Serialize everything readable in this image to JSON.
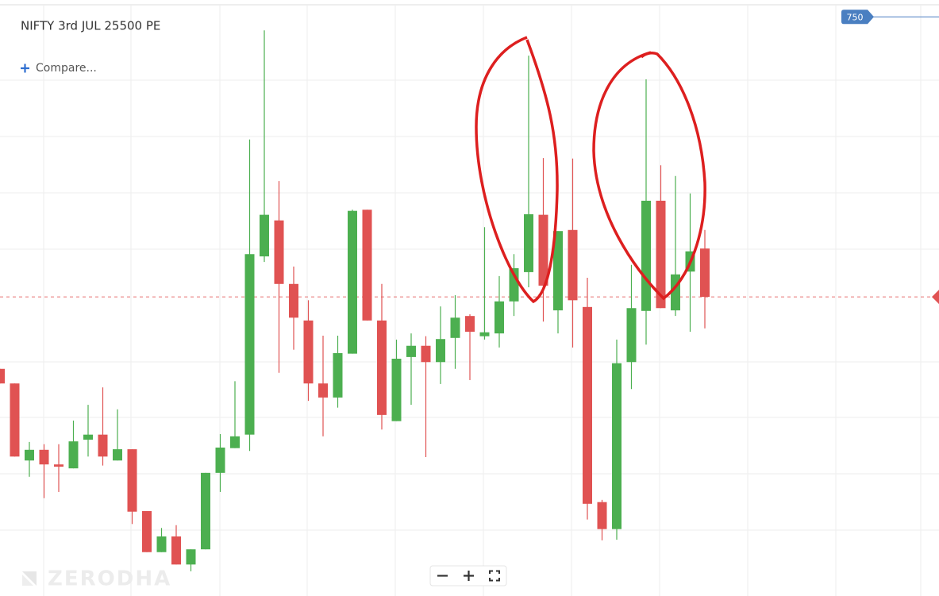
{
  "chart_data": {
    "type": "candlestick",
    "title": "NIFTY 3rd JUL 25500 PE",
    "up_color": "#4caf50",
    "down_color": "#e05252",
    "last_price_color": "#e05252",
    "axis_color": "#4a7fc1",
    "ylim": [
      647,
      753
    ],
    "yticks": [
      750
    ],
    "last_price": 700.2,
    "open": [
      687.4,
      684.8,
      671.1,
      673.0,
      670.4,
      669.7,
      674.8,
      675.7,
      671.1,
      673.1,
      662.1,
      654.8,
      657.6,
      652.6,
      655.3,
      668.9,
      673.3,
      675.7,
      707.4,
      713.8,
      702.5,
      696.0,
      684.8,
      682.3,
      690.1,
      715.7,
      696.0,
      678.1,
      689.5,
      691.5,
      688.6,
      692.9,
      696.8,
      693.2,
      693.7,
      699.4,
      704.6,
      714.8,
      697.8,
      712.1,
      698.4,
      663.7,
      658.9,
      688.6,
      697.7,
      717.3,
      697.8,
      704.7,
      708.8
    ],
    "high": [
      687.4,
      684.8,
      674.4,
      674.0,
      674.0,
      678.2,
      681.0,
      684.1,
      680.2,
      673.1,
      662.1,
      659.1,
      659.6,
      655.3,
      668.9,
      675.8,
      685.2,
      728.2,
      747.6,
      720.8,
      705.6,
      699.6,
      693.3,
      693.3,
      715.7,
      715.7,
      702.5,
      692.6,
      693.7,
      693.2,
      698.5,
      700.5,
      697.1,
      712.6,
      703.9,
      707.8,
      743.1,
      724.9,
      711.9,
      724.8,
      703.6,
      664.1,
      692.6,
      705.9,
      738.9,
      723.6,
      721.7,
      718.6,
      712.1
    ],
    "low": [
      684.8,
      671.8,
      668.2,
      664.4,
      665.5,
      669.7,
      671.8,
      670.2,
      671.1,
      659.8,
      654.8,
      654.8,
      652.6,
      651.4,
      655.3,
      665.5,
      673.3,
      672.8,
      706.4,
      686.7,
      690.8,
      681.7,
      675.4,
      680.5,
      690.1,
      696.0,
      676.6,
      678.1,
      681.0,
      671.7,
      684.7,
      687.4,
      685.4,
      692.6,
      691.2,
      696.8,
      701.9,
      695.8,
      693.7,
      691.2,
      660.6,
      656.9,
      657.0,
      683.8,
      691.7,
      698.2,
      696.8,
      694.0,
      694.6
    ],
    "close": [
      684.8,
      671.8,
      673.0,
      670.4,
      670.0,
      674.5,
      675.7,
      671.8,
      673.1,
      662.0,
      654.8,
      657.6,
      652.6,
      655.3,
      668.9,
      673.4,
      675.4,
      707.8,
      714.8,
      702.5,
      696.5,
      684.8,
      682.3,
      690.2,
      715.5,
      696.0,
      679.2,
      689.2,
      691.5,
      688.6,
      692.7,
      696.5,
      694.0,
      693.9,
      699.4,
      705.3,
      714.9,
      702.2,
      711.9,
      699.6,
      663.4,
      658.9,
      688.4,
      698.2,
      717.3,
      698.2,
      704.2,
      708.3,
      700.2
    ]
  },
  "ui": {
    "compare": "Compare...",
    "watermark": "ZERODHA"
  }
}
